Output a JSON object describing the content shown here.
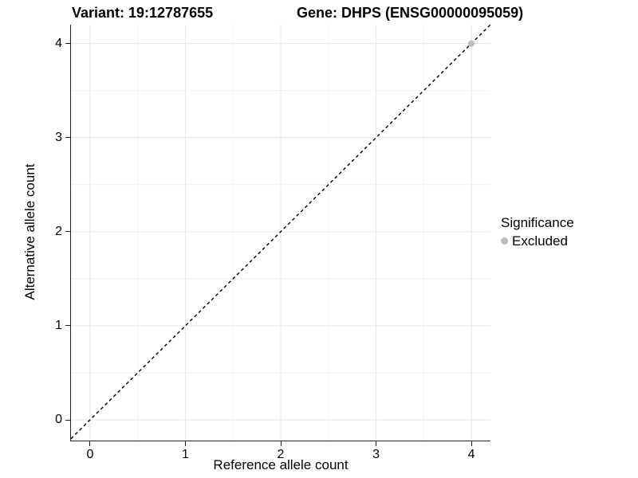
{
  "header": {
    "variant_title": "Variant: 19:12787655",
    "gene_title": "Gene: DHPS (ENSG00000095059)"
  },
  "chart_data": {
    "type": "scatter",
    "title": "Variant: 19:12787655  Gene: DHPS (ENSG00000095059)",
    "xlabel": "Reference allele count",
    "ylabel": "Alternative allele count",
    "xlim": [
      -0.2,
      4.2
    ],
    "ylim": [
      -0.22,
      4.2
    ],
    "x_ticks": [
      0,
      1,
      2,
      3,
      4
    ],
    "y_ticks": [
      0,
      1,
      2,
      3,
      4
    ],
    "x_minor_ticks": [
      0.5,
      1.5,
      2.5,
      3.5
    ],
    "y_minor_ticks": [
      0.5,
      1.5,
      2.5,
      3.5
    ],
    "grid": {
      "visible": true,
      "major_color": "#e6e6e6",
      "minor_color": "#f2f2f2"
    },
    "identity_line": {
      "equation": "y = x",
      "style": "dashed",
      "color": "#000000",
      "from": -0.2,
      "to": 4.2
    },
    "series": [
      {
        "name": "Excluded",
        "color": "#bcbcbc",
        "marker": "circle",
        "points": [
          {
            "x": 4,
            "y": 4
          }
        ]
      }
    ],
    "legend": {
      "position": "right",
      "title": "Significance",
      "entries": [
        {
          "label": "Excluded",
          "color": "#bcbcbc",
          "marker": "circle"
        }
      ]
    },
    "axis_color": "#222222",
    "background_color": "#ffffff"
  }
}
